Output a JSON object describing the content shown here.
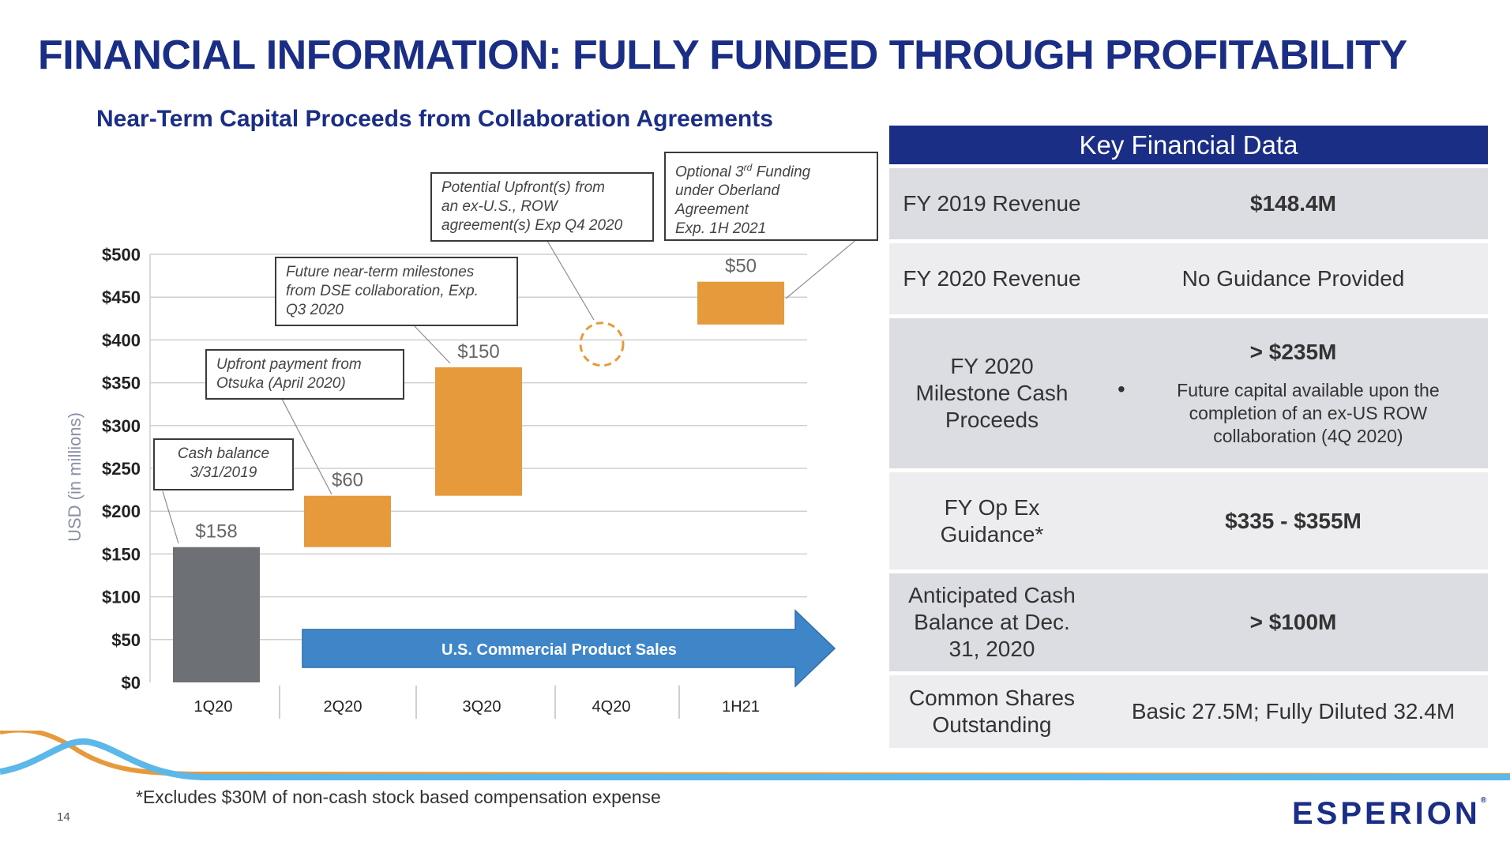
{
  "title": "FINANCIAL INFORMATION: FULLY FUNDED THROUGH PROFITABILITY",
  "chart_data": {
    "type": "bar",
    "variant": "waterfall",
    "title": "Near-Term Capital Proceeds from Collaboration Agreements",
    "ylabel": "USD (in millions)",
    "ylim": [
      0,
      500
    ],
    "yticks": [
      "$0",
      "$50",
      "$100",
      "$150",
      "$200",
      "$250",
      "$300",
      "$350",
      "$400",
      "$450",
      "$500"
    ],
    "categories": [
      "1Q20",
      "2Q20",
      "3Q20",
      "4Q20",
      "1H21"
    ],
    "bars": [
      {
        "category": "1Q20",
        "base": 0,
        "value": 158,
        "label": "$158",
        "color": "#6d7075"
      },
      {
        "category": "2Q20",
        "base": 158,
        "value": 60,
        "label": "$60",
        "color": "#e69a3c"
      },
      {
        "category": "3Q20",
        "base": 218,
        "value": 150,
        "label": "$150",
        "color": "#e69a3c"
      },
      {
        "category": "1H21",
        "base": 418,
        "value": 50,
        "label": "$50",
        "color": "#e69a3c"
      }
    ],
    "potential_marker": {
      "category": "4Q20",
      "y": 395,
      "color": "#e69a3c"
    },
    "arrow": {
      "label": "U.S. Commercial Product Sales",
      "color": "#3f86c9"
    },
    "grid": true,
    "annotations": {
      "cash": [
        "Cash balance",
        "3/31/2019"
      ],
      "otsuka": [
        "Upfront payment from",
        "Otsuka (April 2020)"
      ],
      "dse": [
        "Future near-term milestones",
        "from DSE collaboration, Exp.",
        "Q3 2020"
      ],
      "exus": [
        "Potential Upfront(s) from",
        "an ex-U.S., ROW",
        "agreement(s) Exp Q4 2020"
      ],
      "oberland": {
        "line1": "Optional 3",
        "sup": "rd",
        "line1_end": " Funding",
        "rest": [
          "under Oberland",
          "Agreement",
          "Exp. 1H 2021"
        ]
      }
    }
  },
  "table": {
    "header": "Key Financial Data",
    "rows": [
      {
        "label": "FY 2019 Revenue",
        "value": "$148.4M"
      },
      {
        "label": "FY 2020 Revenue",
        "value": "No Guidance Provided"
      },
      {
        "label": "FY 2020 Milestone Cash Proceeds",
        "value": "> $235M",
        "note": "Future capital available upon the completion of an ex-US ROW collaboration (4Q 2020)"
      },
      {
        "label": "FY Op Ex Guidance*",
        "value": "$335 - $355M"
      },
      {
        "label": "Anticipated Cash Balance at Dec. 31, 2020",
        "value": "> $100M"
      },
      {
        "label": "Common Shares Outstanding",
        "value": "Basic 27.5M; Fully Diluted 32.4M"
      }
    ]
  },
  "footnote": "*Excludes $30M of non-cash stock based compensation expense",
  "page_number": "14",
  "logo_text": "ESPERION",
  "logo_mark": "®",
  "colors": {
    "navy": "#1b2e86",
    "orange": "#e69a3c",
    "gray_bar": "#6d7075",
    "blue_arrow": "#3f86c9",
    "wave_blue": "#5bb8e8"
  }
}
